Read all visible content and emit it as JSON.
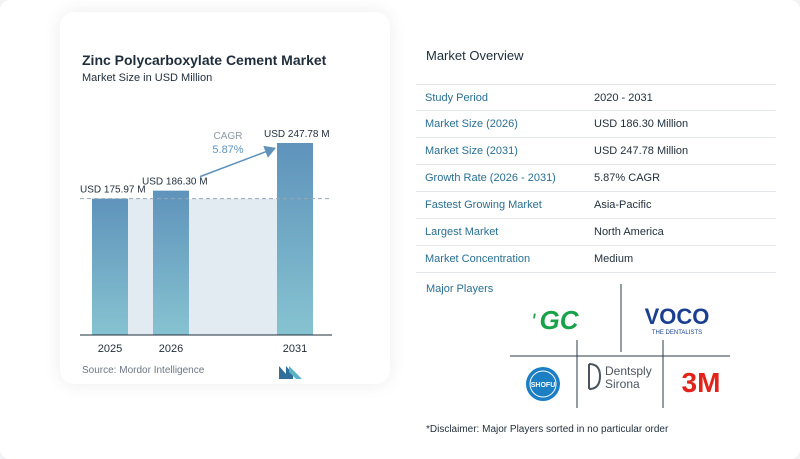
{
  "chart_data": {
    "type": "bar",
    "title": "Zinc Polycarboxylate Cement Market",
    "subtitle": "Market Size in USD Million",
    "categories": [
      "2025",
      "2026",
      "2031"
    ],
    "values": [
      175.97,
      186.3,
      247.78
    ],
    "data_labels": [
      "USD 175.97 M",
      "USD 186.30 M",
      "USD 247.78 M"
    ],
    "cagr_label": "CAGR",
    "cagr_value": "5.87%",
    "ylim": [
      0,
      247.78
    ],
    "xlabel": "",
    "ylabel": "",
    "grid": false,
    "colors": {
      "bar_top": "#5f93bb",
      "bar_bottom": "#86c3d1",
      "shade": "#e2eaf2",
      "arrow": "#5f93bb"
    }
  },
  "source": "Source: Mordor Intelligence",
  "overview": {
    "title": "Market Overview",
    "rows": [
      {
        "label": "Study Period",
        "value": "2020 - 2031"
      },
      {
        "label": "Market Size (2026)",
        "value": "USD 186.30 Million"
      },
      {
        "label": "Market Size (2031)",
        "value": "USD 247.78 Million"
      },
      {
        "label": "Growth Rate (2026 - 2031)",
        "value": "5.87% CAGR"
      },
      {
        "label": "Fastest Growing Market",
        "value": "Asia-Pacific"
      },
      {
        "label": "Largest Market",
        "value": "North America"
      },
      {
        "label": "Market Concentration",
        "value": "Medium"
      }
    ]
  },
  "players": {
    "title": "Major Players",
    "logos": {
      "gc": "GC",
      "voco": "VOCO",
      "voco_sub": "THE DENTALISTS",
      "shofu": "SHOFU",
      "dentsply_line1": "Dentsply",
      "dentsply_line2": "Sirona",
      "threem": "3M"
    }
  },
  "disclaimer": "*Disclaimer: Major Players sorted in no particular order"
}
